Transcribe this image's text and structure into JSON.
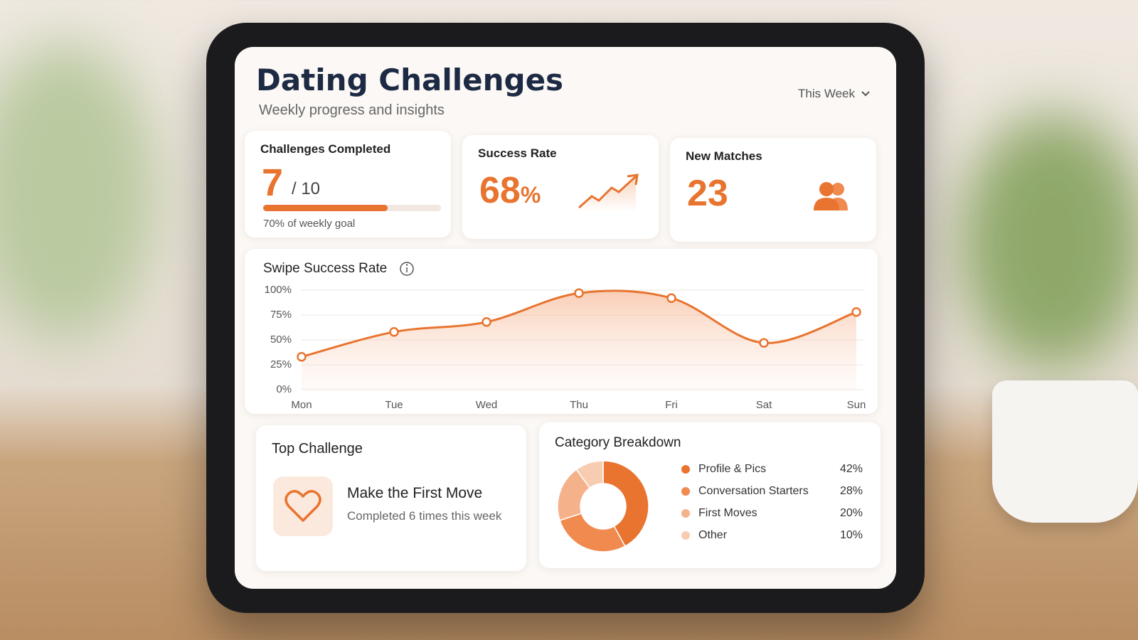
{
  "header": {
    "title": "Dating Challenges",
    "subtitle": "Weekly progress and insights",
    "period": "This Week"
  },
  "stats": [
    {
      "label": "Challenges Completed",
      "value": 7,
      "total_label": "/ 10",
      "progress": 70,
      "progress_label": "70% of weekly goal"
    },
    {
      "label": "Success Rate",
      "value": 68,
      "unit": "%"
    },
    {
      "label": "New Matches",
      "value": 23
    }
  ],
  "top_challenge": {
    "title": "Top Challenge",
    "name": "Make the First Move",
    "note": "Completed 6 times this week"
  },
  "chart_data": [
    {
      "type": "line",
      "title": "Swipe Success Rate",
      "categories": [
        "Mon",
        "Tue",
        "Wed",
        "Thu",
        "Fri",
        "Sat",
        "Sun"
      ],
      "values": [
        33,
        58,
        68,
        97,
        92,
        47,
        78
      ],
      "color": "#e8742f",
      "ylim": [
        0,
        100
      ],
      "yticks": [
        {
          "value": 0,
          "label": "0%"
        },
        {
          "value": 25,
          "label": "25%"
        },
        {
          "value": 50,
          "label": "50%"
        },
        {
          "value": 75,
          "label": "75%"
        },
        {
          "value": 100,
          "label": "100%"
        }
      ],
      "grid": true
    },
    {
      "type": "donut",
      "title": "Category Breakdown",
      "categories": [
        "Profile & Pics",
        "Conversation Starters",
        "First Moves",
        "Other"
      ],
      "values": [
        42,
        28,
        20,
        10
      ],
      "value_labels": [
        "42%",
        "28%",
        "20%",
        "10%"
      ],
      "colors": [
        "#e8742f",
        "#f08a4e",
        "#f5b18a",
        "#f8ccb0"
      ]
    }
  ]
}
